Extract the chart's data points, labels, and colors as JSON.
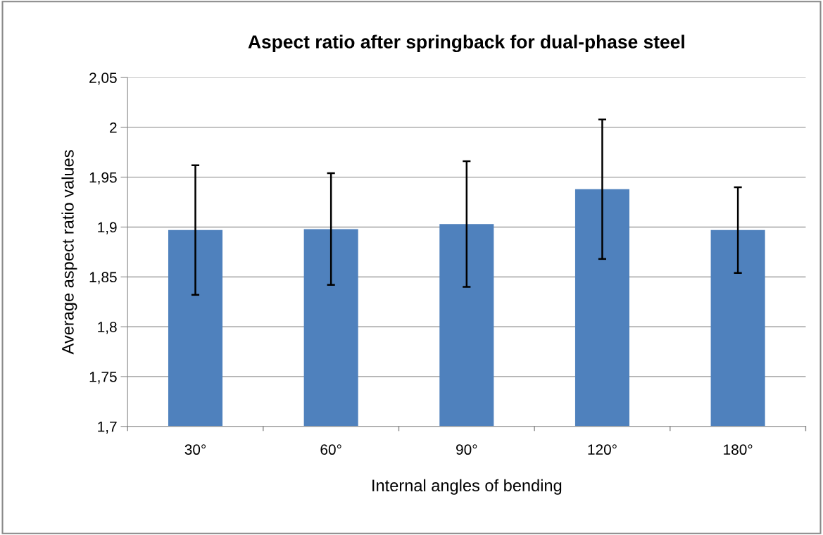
{
  "chart_data": {
    "type": "bar",
    "title": "Aspect ratio after springback for dual-phase steel",
    "xlabel": "Internal angles of bending",
    "ylabel": "Average aspect ratio values",
    "categories": [
      "30°",
      "60°",
      "90°",
      "120°",
      "180°"
    ],
    "values": [
      1.897,
      1.898,
      1.903,
      1.938,
      1.897
    ],
    "errors": [
      0.065,
      0.056,
      0.063,
      0.07,
      0.043
    ],
    "color": "#4f81bd",
    "ylim": [
      1.7,
      2.05
    ],
    "yticks": [
      {
        "value": 1.7,
        "label": "1,7"
      },
      {
        "value": 1.75,
        "label": "1,75"
      },
      {
        "value": 1.8,
        "label": "1,8"
      },
      {
        "value": 1.85,
        "label": "1,85"
      },
      {
        "value": 1.9,
        "label": "1,9"
      },
      {
        "value": 1.95,
        "label": "1,95"
      },
      2,
      {
        "value": 2.05,
        "label": "2,05"
      }
    ],
    "grid": "y",
    "legend": false
  }
}
